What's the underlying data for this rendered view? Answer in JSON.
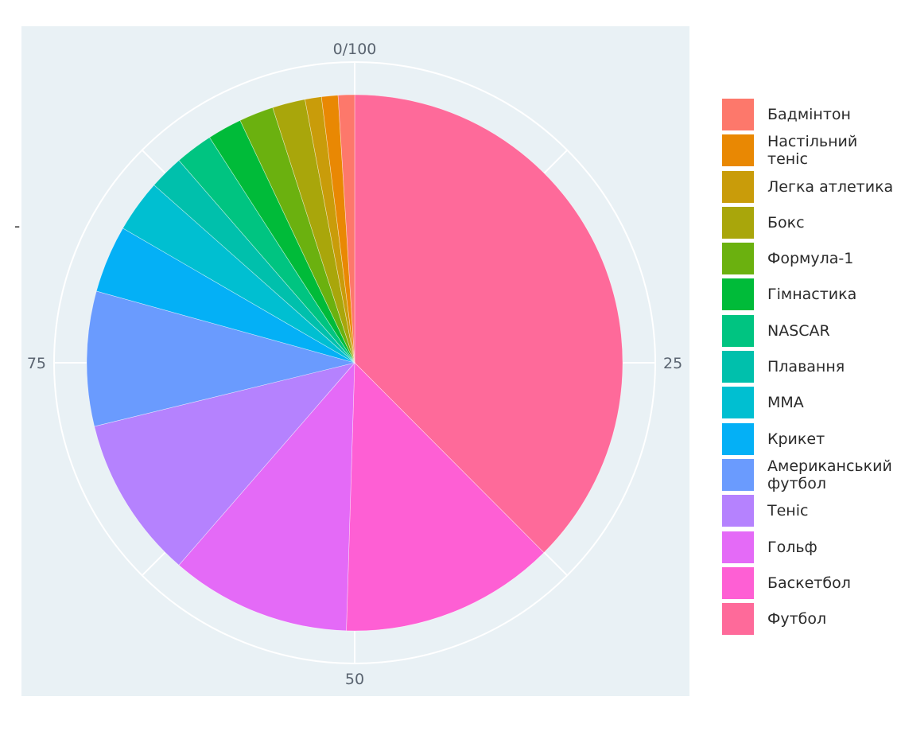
{
  "chart_data": {
    "type": "pie",
    "title": "",
    "direction": "clockwise",
    "start": "top",
    "angular_axis": {
      "ticks": [
        "0/100",
        "25",
        "50",
        "75"
      ],
      "range": [
        0,
        100
      ],
      "grid": true
    },
    "legend_placement": "right",
    "background": "#e9f1f5",
    "slices": [
      {
        "label": "Футбол",
        "value": 37.9,
        "color": "#fe6a9a"
      },
      {
        "label": "Баскетбол",
        "value": 13.1,
        "color": "#fe5fd4"
      },
      {
        "label": "Гольф",
        "value": 11.0,
        "color": "#e46af7"
      },
      {
        "label": "Теніс",
        "value": 9.9,
        "color": "#b582fe"
      },
      {
        "label": "Американський футбол",
        "value": 8.2,
        "color": "#6a9bfe"
      },
      {
        "label": "Крикет",
        "value": 4.1,
        "color": "#04b0f6"
      },
      {
        "label": "MMA",
        "value": 3.2,
        "color": "#00bfd1"
      },
      {
        "label": "Плавання",
        "value": 2.1,
        "color": "#00c0ac"
      },
      {
        "label": "NASCAR",
        "value": 2.3,
        "color": "#00c481"
      },
      {
        "label": "Гімнастика",
        "value": 2.1,
        "color": "#00bb39"
      },
      {
        "label": "Формула-1",
        "value": 2.1,
        "color": "#6bb10f"
      },
      {
        "label": "Бокс",
        "value": 2.0,
        "color": "#a9a60b"
      },
      {
        "label": "Легка атлетика",
        "value": 1.0,
        "color": "#c99c0a"
      },
      {
        "label": "Настільний теніс",
        "value": 1.0,
        "color": "#e98803"
      },
      {
        "label": "Бадмінтон",
        "value": 1.0,
        "color": "#fd786b"
      }
    ]
  },
  "stray_mark": "-"
}
